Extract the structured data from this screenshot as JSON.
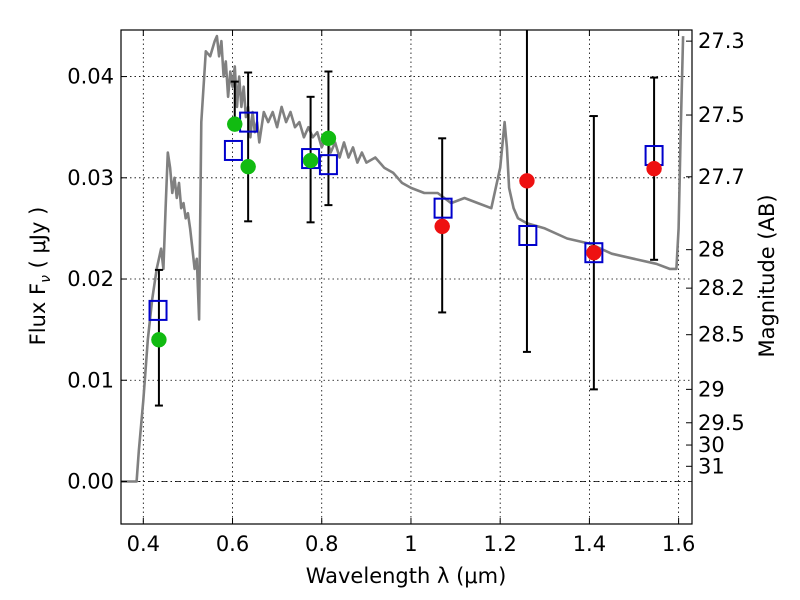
{
  "chart_data": {
    "type": "scatter",
    "xlabel": "Wavelength  λ (μm)",
    "ylabel": "Flux  F",
    "ylabel_sub": "ν",
    "ylabel_unit": " ( μJy )",
    "ylabel_right": "Magnitude (AB)",
    "xlim": [
      0.35,
      1.63
    ],
    "ylim": [
      -0.0042,
      0.0446
    ],
    "x_ticks": [
      0.4,
      0.6,
      0.8,
      1.0,
      1.2,
      1.4,
      1.6
    ],
    "x_tick_labels": [
      "0.4",
      "0.6",
      "0.8",
      "1",
      "1.2",
      "1.4",
      "1.6"
    ],
    "y_ticks": [
      0.0,
      0.01,
      0.02,
      0.03,
      0.04
    ],
    "y_tick_labels": [
      "0.00",
      "0.01",
      "0.02",
      "0.03",
      "0.04"
    ],
    "right_axis_ticks": [
      {
        "label": "27.3",
        "flux": 0.0435
      },
      {
        "label": "27.5",
        "flux": 0.0362
      },
      {
        "label": "27.7",
        "flux": 0.0301
      },
      {
        "label": "28",
        "flux": 0.0229
      },
      {
        "label": "28.2",
        "flux": 0.0191
      },
      {
        "label": "28.5",
        "flux": 0.0145
      },
      {
        "label": "29",
        "flux": 0.0091
      },
      {
        "label": "29.5",
        "flux": 0.0058
      },
      {
        "label": "30",
        "flux": 0.0036
      },
      {
        "label": "31",
        "flux": 0.0015
      }
    ],
    "grid": true,
    "model_spectrum": {
      "color": "#808080",
      "x": [
        0.35,
        0.385,
        0.39,
        0.4,
        0.41,
        0.42,
        0.43,
        0.435,
        0.44,
        0.445,
        0.45,
        0.455,
        0.46,
        0.465,
        0.47,
        0.475,
        0.48,
        0.485,
        0.49,
        0.495,
        0.5,
        0.505,
        0.51,
        0.515,
        0.52,
        0.525,
        0.53,
        0.54,
        0.55,
        0.56,
        0.565,
        0.57,
        0.575,
        0.58,
        0.585,
        0.59,
        0.595,
        0.6,
        0.605,
        0.61,
        0.615,
        0.62,
        0.625,
        0.63,
        0.635,
        0.64,
        0.645,
        0.65,
        0.655,
        0.66,
        0.67,
        0.68,
        0.69,
        0.7,
        0.71,
        0.72,
        0.73,
        0.74,
        0.75,
        0.76,
        0.77,
        0.78,
        0.79,
        0.8,
        0.81,
        0.82,
        0.83,
        0.84,
        0.85,
        0.86,
        0.87,
        0.88,
        0.89,
        0.9,
        0.92,
        0.94,
        0.96,
        0.98,
        1.0,
        1.03,
        1.06,
        1.09,
        1.12,
        1.15,
        1.18,
        1.2,
        1.21,
        1.215,
        1.22,
        1.23,
        1.24,
        1.26,
        1.3,
        1.35,
        1.4,
        1.45,
        1.5,
        1.55,
        1.58,
        1.595,
        1.6,
        1.605,
        1.61
      ],
      "y": [
        0.0,
        0.0,
        0.003,
        0.008,
        0.014,
        0.018,
        0.021,
        0.022,
        0.023,
        0.021,
        0.027,
        0.0325,
        0.031,
        0.0285,
        0.03,
        0.028,
        0.0295,
        0.027,
        0.0275,
        0.026,
        0.0265,
        0.025,
        0.023,
        0.021,
        0.022,
        0.016,
        0.0355,
        0.0425,
        0.042,
        0.0435,
        0.044,
        0.042,
        0.0435,
        0.04,
        0.0415,
        0.038,
        0.0405,
        0.039,
        0.041,
        0.037,
        0.04,
        0.037,
        0.039,
        0.036,
        0.037,
        0.034,
        0.0365,
        0.0345,
        0.0355,
        0.0335,
        0.0365,
        0.0355,
        0.0365,
        0.035,
        0.037,
        0.0355,
        0.0365,
        0.035,
        0.0355,
        0.034,
        0.035,
        0.034,
        0.0345,
        0.033,
        0.034,
        0.0325,
        0.0335,
        0.032,
        0.0335,
        0.032,
        0.033,
        0.0315,
        0.0325,
        0.0315,
        0.032,
        0.031,
        0.0305,
        0.0295,
        0.029,
        0.0285,
        0.0285,
        0.0275,
        0.028,
        0.0275,
        0.027,
        0.031,
        0.0355,
        0.033,
        0.029,
        0.027,
        0.026,
        0.0255,
        0.025,
        0.024,
        0.0235,
        0.0225,
        0.022,
        0.0215,
        0.021,
        0.021,
        0.025,
        0.035,
        0.044
      ]
    },
    "model_points": {
      "marker": "open-square",
      "color": "#0000cc",
      "x": [
        0.433,
        0.602,
        0.636,
        0.775,
        0.815,
        1.072,
        1.262,
        1.41,
        1.545
      ],
      "y": [
        0.0169,
        0.0327,
        0.0355,
        0.0319,
        0.0313,
        0.027,
        0.0243,
        0.0226,
        0.0322
      ]
    },
    "observed_detections": {
      "marker": "filled-circle",
      "color": "#11bb11",
      "x": [
        0.435,
        0.605,
        0.635,
        0.775,
        0.815
      ],
      "y": [
        0.014,
        0.0353,
        0.0311,
        0.0317,
        0.0339
      ],
      "yerr_low": [
        0.0075,
        null,
        0.0257,
        0.0256,
        0.0273
      ],
      "yerr_high": [
        0.0209,
        0.0395,
        0.0404,
        0.038,
        0.0405
      ]
    },
    "observed_other": {
      "marker": "filled-circle",
      "color": "#ee1111",
      "x": [
        1.07,
        1.26,
        1.41,
        1.545
      ],
      "y": [
        0.0252,
        0.0297,
        0.0226,
        0.0309
      ],
      "yerr_low": [
        0.0167,
        0.0128,
        0.0091,
        0.0219
      ],
      "yerr_high": [
        0.0339,
        0.0446,
        0.0361,
        0.0399
      ]
    }
  }
}
